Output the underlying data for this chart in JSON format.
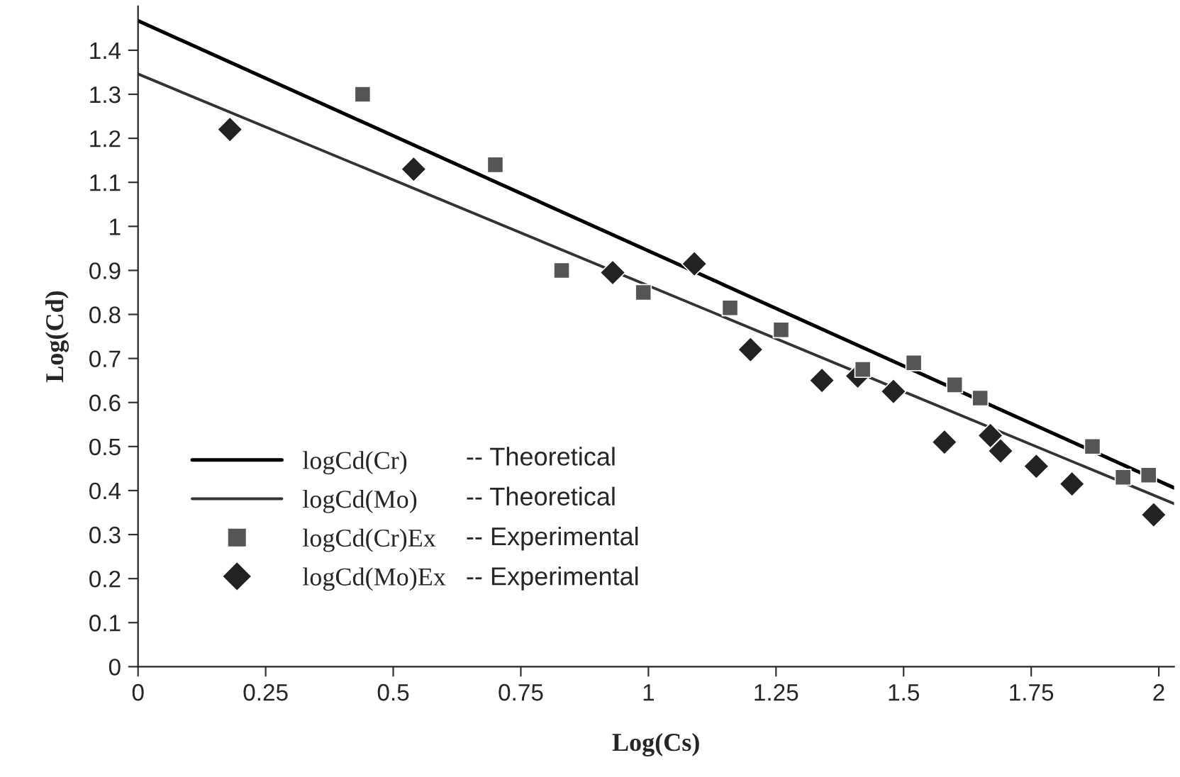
{
  "chart_data": {
    "type": "scatter",
    "xlabel": "Log(Cs)",
    "ylabel": "Log(Cd)",
    "xlim": [
      0,
      2.03
    ],
    "ylim": [
      0,
      1.5
    ],
    "xticks": [
      0,
      0.25,
      0.5,
      0.75,
      1,
      1.25,
      1.5,
      1.75,
      2
    ],
    "yticks": [
      0,
      0.1,
      0.2,
      0.3,
      0.4,
      0.5,
      0.6,
      0.7,
      0.8,
      0.9,
      1,
      1.1,
      1.2,
      1.3,
      1.4
    ],
    "grid": false,
    "legend": "lower left",
    "series": [
      {
        "name": "logCd(Cr)",
        "type": "line",
        "color": "#000000",
        "x": [
          0,
          2.03
        ],
        "values": [
          1.467,
          0.406
        ],
        "marker": "none",
        "line_style": "solid"
      },
      {
        "name": "logCd(Mo)",
        "type": "line",
        "color": "#333333",
        "x": [
          0,
          2.03
        ],
        "values": [
          1.346,
          0.37
        ],
        "marker": "none",
        "line_style": "solid"
      },
      {
        "name": "logCd(Cr)Ex",
        "color": "#555555",
        "marker": "square",
        "x": [
          0.44,
          0.7,
          0.83,
          0.99,
          1.16,
          1.26,
          1.42,
          1.52,
          1.6,
          1.65,
          1.87,
          1.93,
          1.98
        ],
        "values": [
          1.3,
          1.14,
          0.9,
          0.85,
          0.815,
          0.765,
          0.675,
          0.69,
          0.64,
          0.61,
          0.5,
          0.43,
          0.435
        ]
      },
      {
        "name": "logCd(Mo)Ex",
        "color": "#222222",
        "marker": "diamond",
        "x": [
          0.18,
          0.54,
          0.93,
          1.09,
          1.2,
          1.34,
          1.41,
          1.48,
          1.58,
          1.67,
          1.69,
          1.76,
          1.83,
          1.99
        ],
        "values": [
          1.22,
          1.13,
          0.895,
          0.915,
          0.72,
          0.65,
          0.66,
          0.625,
          0.51,
          0.525,
          0.49,
          0.455,
          0.415,
          0.345
        ]
      }
    ],
    "annotations": [
      "-- Theoretical",
      "-- Theoretical",
      "-- Experimental",
      "-- Experimental"
    ]
  }
}
